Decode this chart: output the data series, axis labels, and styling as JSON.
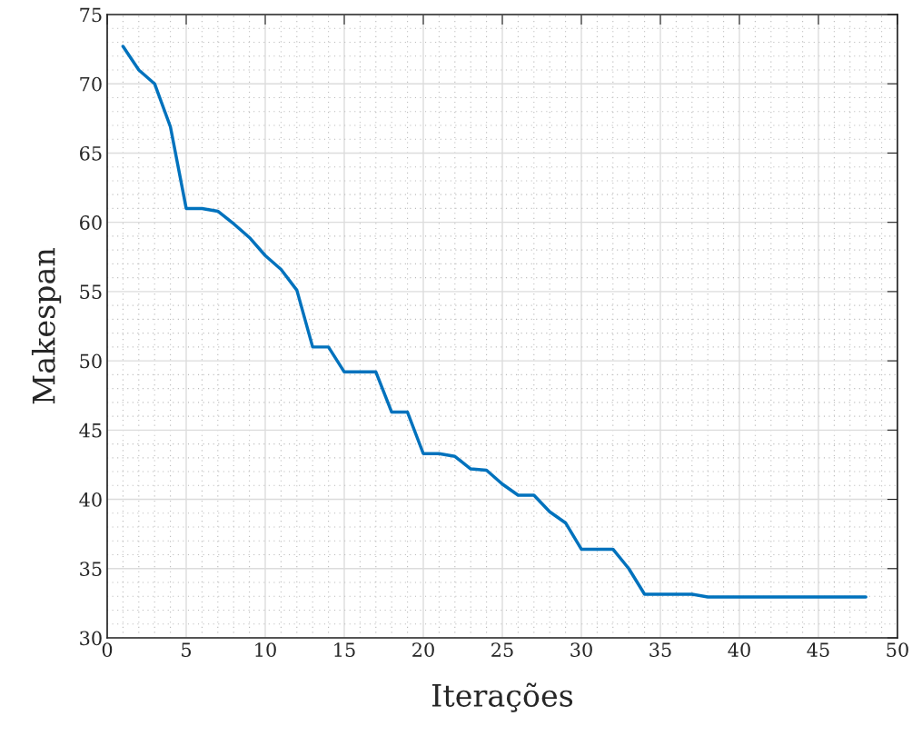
{
  "chart_data": {
    "type": "line",
    "xlabel": "Iterações",
    "ylabel": "Makespan",
    "x": [
      1,
      2,
      3,
      4,
      5,
      6,
      7,
      8,
      9,
      10,
      11,
      12,
      13,
      14,
      15,
      16,
      17,
      18,
      19,
      20,
      21,
      22,
      23,
      24,
      25,
      26,
      27,
      28,
      29,
      30,
      31,
      32,
      33,
      34,
      35,
      36,
      37,
      38,
      39,
      40,
      41,
      42,
      43,
      44,
      45,
      46,
      47,
      48
    ],
    "series": [
      {
        "color": "#0072bd",
        "values": [
          72.7,
          71.0,
          70.0,
          66.9,
          61.0,
          61.0,
          60.8,
          59.9,
          58.9,
          57.6,
          56.6,
          55.1,
          51.0,
          51.0,
          49.2,
          49.2,
          49.2,
          46.3,
          46.3,
          43.3,
          43.3,
          43.1,
          42.2,
          42.1,
          41.1,
          40.3,
          40.3,
          39.1,
          38.3,
          36.4,
          36.4,
          36.4,
          35.0,
          33.15,
          33.15,
          33.15,
          33.15,
          32.95,
          32.95,
          32.95,
          32.95,
          32.95,
          32.95,
          32.95,
          32.95,
          32.95,
          32.95,
          32.95
        ]
      }
    ],
    "xlim": [
      0,
      50
    ],
    "xticks": [
      0,
      5,
      10,
      15,
      20,
      25,
      30,
      35,
      40,
      45,
      50
    ],
    "ylim": [
      30,
      75
    ],
    "yticks": [
      30,
      35,
      40,
      45,
      50,
      55,
      60,
      65,
      70,
      75
    ],
    "grid": true,
    "line_style": "solid",
    "marker": "none"
  }
}
